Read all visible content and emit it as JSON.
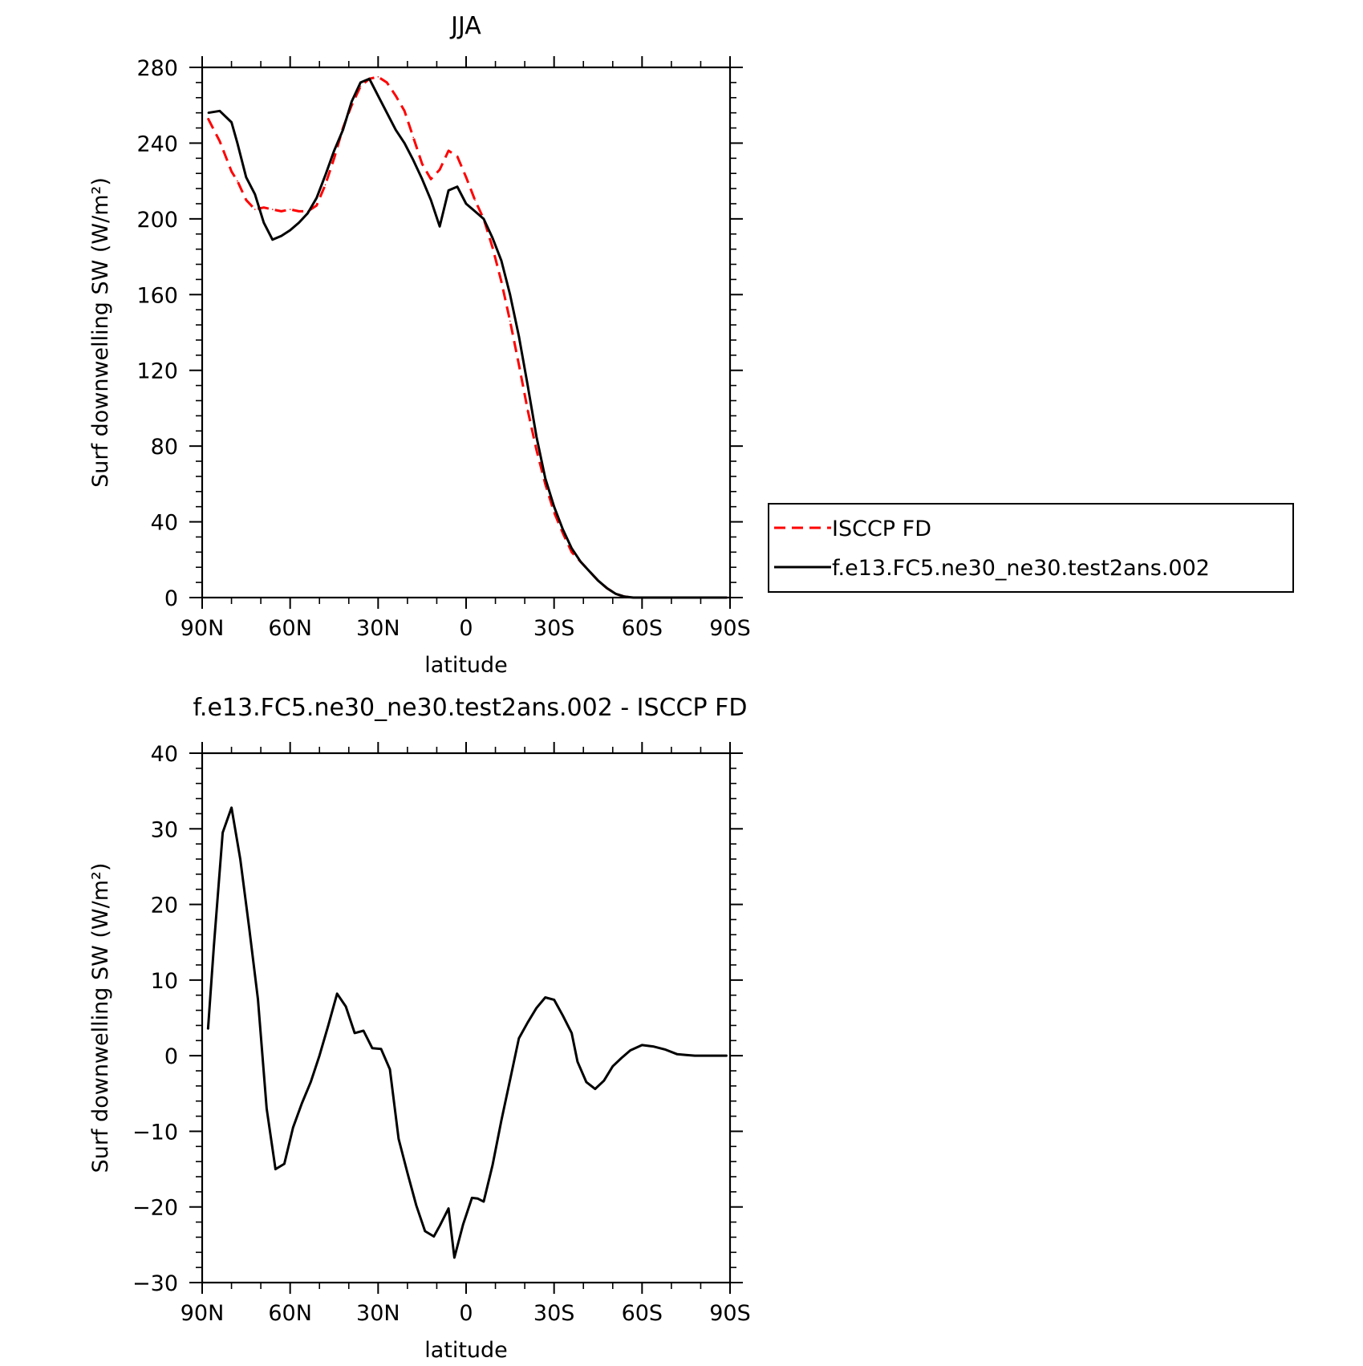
{
  "chart_data": [
    {
      "type": "line",
      "title": "JJA",
      "xlabel": "latitude",
      "ylabel": "Surf downwelling SW (W/m²)",
      "xlim": [
        90,
        -90
      ],
      "ylim": [
        0,
        280
      ],
      "x_tick_values": [
        90,
        60,
        30,
        0,
        -30,
        -60,
        -90
      ],
      "x_tick_labels": [
        "90N",
        "60N",
        "30N",
        "0",
        "30S",
        "60S",
        "90S"
      ],
      "y_ticks": [
        0,
        40,
        80,
        120,
        160,
        200,
        240,
        280
      ],
      "grid": false,
      "legend": "right-outside",
      "x": [
        88,
        84,
        80,
        78,
        75,
        72,
        69,
        66,
        63,
        60,
        57,
        54,
        51,
        48,
        45,
        42,
        39,
        36,
        33,
        30,
        27,
        24,
        21,
        18,
        15,
        12,
        9,
        6,
        3,
        0,
        -3,
        -6,
        -9,
        -12,
        -15,
        -18,
        -21,
        -24,
        -27,
        -30,
        -33,
        -36,
        -39,
        -42,
        -45,
        -48,
        -51,
        -54,
        -57,
        -60,
        -63,
        -66,
        -69,
        -72,
        -75,
        -78,
        -81,
        -84,
        -87,
        -89
      ],
      "series": [
        {
          "name": "ISCCP FD",
          "color": "#ff0000",
          "dash": "dashed",
          "values": [
            253,
            241,
            225,
            220,
            210,
            205,
            206,
            205,
            204,
            205,
            204,
            204,
            207,
            218,
            232,
            248,
            260,
            270,
            274,
            275,
            272,
            265,
            257,
            243,
            229,
            221,
            226,
            236,
            233,
            222,
            210,
            200,
            185,
            167,
            146,
            123,
            99,
            78,
            60,
            45,
            34,
            24,
            19,
            14,
            9,
            5,
            2,
            0.5,
            0,
            0,
            0,
            0,
            0,
            0,
            0,
            0,
            0,
            0,
            0,
            0
          ]
        },
        {
          "name": "f.e13.FC5.ne30_ne30.test2ans.002",
          "color": "#000000",
          "dash": "solid",
          "values": [
            256,
            257,
            251,
            240,
            222,
            213,
            198,
            189,
            191,
            194,
            198,
            203,
            211,
            223,
            236,
            247,
            262,
            272,
            274,
            265,
            256,
            247,
            240,
            231,
            221,
            210,
            196,
            215,
            217,
            208,
            204,
            200,
            190,
            178,
            160,
            138,
            112,
            85,
            63,
            48,
            36,
            26,
            19,
            14,
            9,
            5,
            2,
            0.5,
            0,
            0,
            0,
            0,
            0,
            0,
            0,
            0,
            0,
            0,
            0,
            0
          ]
        }
      ]
    },
    {
      "type": "line",
      "title": "f.e13.FC5.ne30_ne30.test2ans.002 - ISCCP FD",
      "xlabel": "latitude",
      "ylabel": "Surf downwelling SW (W/m²)",
      "xlim": [
        90,
        -90
      ],
      "ylim": [
        -30,
        40
      ],
      "x_tick_values": [
        90,
        60,
        30,
        0,
        -30,
        -60,
        -90
      ],
      "x_tick_labels": [
        "90N",
        "60N",
        "30N",
        "0",
        "30S",
        "60S",
        "90S"
      ],
      "y_ticks": [
        -30,
        -20,
        -10,
        0,
        10,
        20,
        30,
        40
      ],
      "y_tick_labels": [
        "−30",
        "−20",
        "−10",
        "0",
        "10",
        "20",
        "30",
        "40"
      ],
      "grid": false,
      "x": [
        88,
        86,
        83,
        80,
        77,
        74,
        71,
        68,
        65,
        62,
        59,
        56,
        53,
        50,
        47,
        44,
        41,
        38,
        35,
        32,
        29,
        26,
        23,
        20,
        17,
        14,
        11,
        9,
        6,
        4,
        1,
        -2,
        -4,
        -6,
        -9,
        -12,
        -15,
        -18,
        -21,
        -24,
        -27,
        -30,
        -33,
        -36,
        -38,
        -41,
        -44,
        -47,
        -50,
        -53,
        -56,
        -60,
        -64,
        -68,
        -72,
        -75,
        -78,
        -81,
        -85,
        -89
      ],
      "series": [
        {
          "name": "",
          "color": "#000000",
          "dash": "solid",
          "values": [
            3.5,
            14.5,
            29.5,
            32.8,
            26,
            17,
            7.5,
            -7,
            -15,
            -14.3,
            -9.5,
            -6.3,
            -3.5,
            0,
            4,
            8.2,
            6.5,
            3,
            3.3,
            1,
            0.9,
            -1.8,
            -11,
            -15.5,
            -19.8,
            -23.2,
            -23.9,
            -22.5,
            -20.2,
            -26.7,
            -22.3,
            -18.8,
            -18.9,
            -19.3,
            -14.5,
            -8.6,
            -3.2,
            2.3,
            4.4,
            6.3,
            7.7,
            7.4,
            5.3,
            3,
            -0.8,
            -3.5,
            -4.4,
            -3.3,
            -1.4,
            -0.3,
            0.7,
            1.4,
            1.2,
            0.8,
            0.2,
            0.1,
            0,
            0,
            0,
            0
          ]
        }
      ]
    }
  ]
}
